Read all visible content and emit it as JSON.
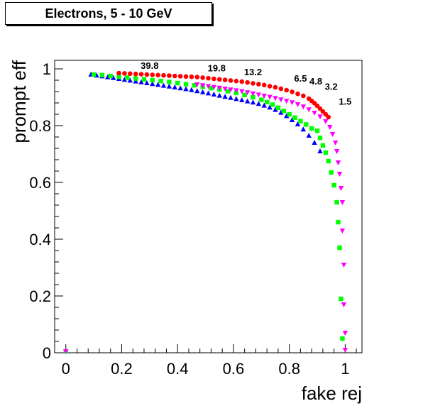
{
  "chart_data": {
    "type": "scatter",
    "title": "Electrons, 5 - 10 GeV",
    "xlabel": "fake rej",
    "ylabel": "prompt eff",
    "xlim": [
      -0.04,
      1.06
    ],
    "ylim": [
      0,
      1.03
    ],
    "xticks": [
      "0",
      "0.2",
      "0.4",
      "0.6",
      "0.8",
      "1"
    ],
    "yticks": [
      "0",
      "0.2",
      "0.4",
      "0.6",
      "0.8",
      "1"
    ],
    "grid": false,
    "series": [
      {
        "color": "#0000ff",
        "marker": "triangle-up",
        "points": [
          [
            0.09,
            0.98
          ],
          [
            0.11,
            0.977
          ],
          [
            0.13,
            0.974
          ],
          [
            0.15,
            0.971
          ],
          [
            0.17,
            0.968
          ],
          [
            0.19,
            0.965
          ],
          [
            0.21,
            0.962
          ],
          [
            0.23,
            0.959
          ],
          [
            0.25,
            0.956
          ],
          [
            0.27,
            0.953
          ],
          [
            0.29,
            0.95
          ],
          [
            0.31,
            0.947
          ],
          [
            0.33,
            0.944
          ],
          [
            0.35,
            0.941
          ],
          [
            0.37,
            0.938
          ],
          [
            0.39,
            0.935
          ],
          [
            0.41,
            0.932
          ],
          [
            0.43,
            0.929
          ],
          [
            0.45,
            0.926
          ],
          [
            0.47,
            0.922
          ],
          [
            0.49,
            0.918
          ],
          [
            0.51,
            0.914
          ],
          [
            0.53,
            0.91
          ],
          [
            0.55,
            0.906
          ],
          [
            0.57,
            0.902
          ],
          [
            0.59,
            0.898
          ],
          [
            0.61,
            0.894
          ],
          [
            0.63,
            0.89
          ],
          [
            0.65,
            0.886
          ],
          [
            0.67,
            0.882
          ],
          [
            0.69,
            0.877
          ],
          [
            0.71,
            0.871
          ],
          [
            0.73,
            0.864
          ],
          [
            0.75,
            0.856
          ],
          [
            0.77,
            0.846
          ],
          [
            0.79,
            0.834
          ],
          [
            0.81,
            0.82
          ],
          [
            0.83,
            0.805
          ],
          [
            0.85,
            0.787
          ],
          [
            0.87,
            0.765
          ],
          [
            0.89,
            0.74
          ],
          [
            0.91,
            0.71
          ],
          [
            0.0,
            0.005
          ]
        ]
      },
      {
        "color": "#00ff00",
        "marker": "square",
        "points": [
          [
            0.1,
            0.98
          ],
          [
            0.13,
            0.978
          ],
          [
            0.16,
            0.975
          ],
          [
            0.19,
            0.972
          ],
          [
            0.22,
            0.969
          ],
          [
            0.25,
            0.966
          ],
          [
            0.28,
            0.963
          ],
          [
            0.31,
            0.96
          ],
          [
            0.34,
            0.957
          ],
          [
            0.37,
            0.954
          ],
          [
            0.4,
            0.95
          ],
          [
            0.43,
            0.946
          ],
          [
            0.46,
            0.942
          ],
          [
            0.49,
            0.937
          ],
          [
            0.52,
            0.932
          ],
          [
            0.55,
            0.927
          ],
          [
            0.58,
            0.921
          ],
          [
            0.61,
            0.915
          ],
          [
            0.64,
            0.908
          ],
          [
            0.67,
            0.9
          ],
          [
            0.7,
            0.891
          ],
          [
            0.72,
            0.883
          ],
          [
            0.74,
            0.874
          ],
          [
            0.76,
            0.863
          ],
          [
            0.78,
            0.852
          ],
          [
            0.8,
            0.84
          ],
          [
            0.82,
            0.828
          ],
          [
            0.84,
            0.816
          ],
          [
            0.86,
            0.804
          ],
          [
            0.88,
            0.79
          ],
          [
            0.9,
            0.782
          ],
          [
            0.91,
            0.757
          ],
          [
            0.92,
            0.73
          ],
          [
            0.93,
            0.705
          ],
          [
            0.94,
            0.675
          ],
          [
            0.95,
            0.635
          ],
          [
            0.96,
            0.59
          ],
          [
            0.97,
            0.53
          ],
          [
            0.975,
            0.46
          ],
          [
            0.98,
            0.37
          ],
          [
            0.985,
            0.19
          ],
          [
            0.99,
            0.05
          ],
          [
            0.0,
            0.005
          ]
        ]
      },
      {
        "color": "#ff00ff",
        "marker": "triangle-down",
        "points": [
          [
            0.47,
            0.945
          ],
          [
            0.49,
            0.942
          ],
          [
            0.51,
            0.939
          ],
          [
            0.53,
            0.936
          ],
          [
            0.55,
            0.933
          ],
          [
            0.57,
            0.93
          ],
          [
            0.59,
            0.927
          ],
          [
            0.61,
            0.924
          ],
          [
            0.63,
            0.921
          ],
          [
            0.65,
            0.917
          ],
          [
            0.67,
            0.913
          ],
          [
            0.69,
            0.909
          ],
          [
            0.71,
            0.905
          ],
          [
            0.73,
            0.901
          ],
          [
            0.75,
            0.897
          ],
          [
            0.77,
            0.892
          ],
          [
            0.79,
            0.887
          ],
          [
            0.81,
            0.882
          ],
          [
            0.83,
            0.875
          ],
          [
            0.85,
            0.867
          ],
          [
            0.87,
            0.857
          ],
          [
            0.89,
            0.845
          ],
          [
            0.91,
            0.832
          ],
          [
            0.93,
            0.815
          ],
          [
            0.945,
            0.795
          ],
          [
            0.955,
            0.77
          ],
          [
            0.965,
            0.74
          ],
          [
            0.97,
            0.71
          ],
          [
            0.975,
            0.67
          ],
          [
            0.98,
            0.63
          ],
          [
            0.985,
            0.58
          ],
          [
            0.99,
            0.53
          ],
          [
            0.99,
            0.43
          ],
          [
            0.995,
            0.31
          ],
          [
            0.995,
            0.17
          ],
          [
            1.0,
            0.07
          ],
          [
            1.0,
            0.01
          ],
          [
            0.0,
            0.005
          ]
        ]
      },
      {
        "color": "#ff0000",
        "marker": "circle",
        "points": [
          [
            0.19,
            0.985
          ],
          [
            0.21,
            0.984
          ],
          [
            0.23,
            0.983
          ],
          [
            0.25,
            0.982
          ],
          [
            0.27,
            0.981
          ],
          [
            0.29,
            0.98
          ],
          [
            0.31,
            0.979
          ],
          [
            0.33,
            0.978
          ],
          [
            0.35,
            0.977
          ],
          [
            0.37,
            0.976
          ],
          [
            0.39,
            0.975
          ],
          [
            0.41,
            0.974
          ],
          [
            0.43,
            0.973
          ],
          [
            0.45,
            0.972
          ],
          [
            0.47,
            0.971
          ],
          [
            0.49,
            0.969
          ],
          [
            0.51,
            0.967
          ],
          [
            0.53,
            0.965
          ],
          [
            0.55,
            0.963
          ],
          [
            0.57,
            0.961
          ],
          [
            0.59,
            0.959
          ],
          [
            0.61,
            0.957
          ],
          [
            0.63,
            0.955
          ],
          [
            0.65,
            0.952
          ],
          [
            0.67,
            0.949
          ],
          [
            0.69,
            0.946
          ],
          [
            0.71,
            0.943
          ],
          [
            0.73,
            0.939
          ],
          [
            0.75,
            0.935
          ],
          [
            0.77,
            0.93
          ],
          [
            0.79,
            0.925
          ],
          [
            0.81,
            0.919
          ],
          [
            0.83,
            0.912
          ],
          [
            0.85,
            0.905
          ],
          [
            0.87,
            0.895
          ],
          [
            0.88,
            0.887
          ],
          [
            0.89,
            0.879
          ],
          [
            0.9,
            0.87
          ],
          [
            0.91,
            0.86
          ],
          [
            0.92,
            0.85
          ],
          [
            0.93,
            0.84
          ],
          [
            0.94,
            0.83
          ]
        ]
      }
    ],
    "annotations": [
      {
        "text": "39.8",
        "x": 0.3,
        "y": 1.0
      },
      {
        "text": "19.8",
        "x": 0.54,
        "y": 0.991
      },
      {
        "text": "13.2",
        "x": 0.67,
        "y": 0.978
      },
      {
        "text": "6.5",
        "x": 0.84,
        "y": 0.955
      },
      {
        "text": "4.8",
        "x": 0.895,
        "y": 0.945
      },
      {
        "text": "3.2",
        "x": 0.95,
        "y": 0.926
      },
      {
        "text": "1.5",
        "x": 1.0,
        "y": 0.874
      }
    ]
  }
}
